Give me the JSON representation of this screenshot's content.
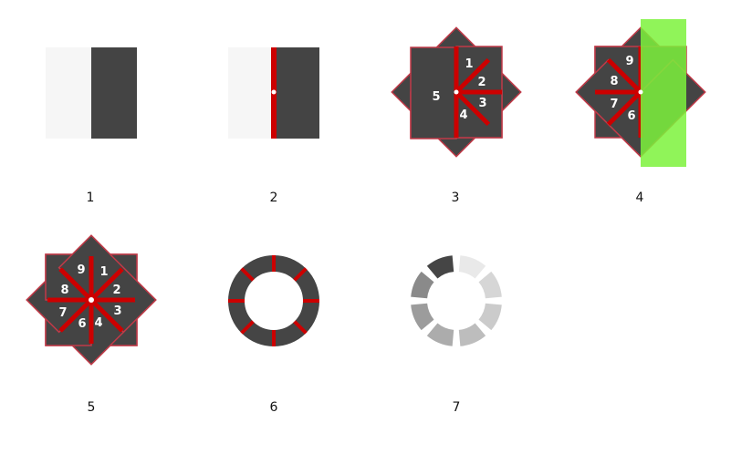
{
  "colors": {
    "light": "#f6f6f6",
    "dark": "#444444",
    "red": "#cc0000",
    "border": "#c03a48",
    "green": "#7df23c",
    "green_overlap": "#5ed021",
    "ring": "#454545",
    "text": "#111111"
  },
  "steps": [
    {
      "caption": "1"
    },
    {
      "caption": "2"
    },
    {
      "caption": "3"
    },
    {
      "caption": "4"
    },
    {
      "caption": "5"
    },
    {
      "caption": "6"
    },
    {
      "caption": "7"
    }
  ],
  "segment_numbers": [
    "1",
    "2",
    "3",
    "4",
    "5",
    "6",
    "7",
    "8",
    "9"
  ],
  "spinner_shades": [
    "#e9e9e9",
    "#d6d6d6",
    "#cbcbcb",
    "#bdbdbd",
    "#acacac",
    "#9c9c9c",
    "#8a8a8a",
    "#6a6a6a",
    "#454545"
  ]
}
